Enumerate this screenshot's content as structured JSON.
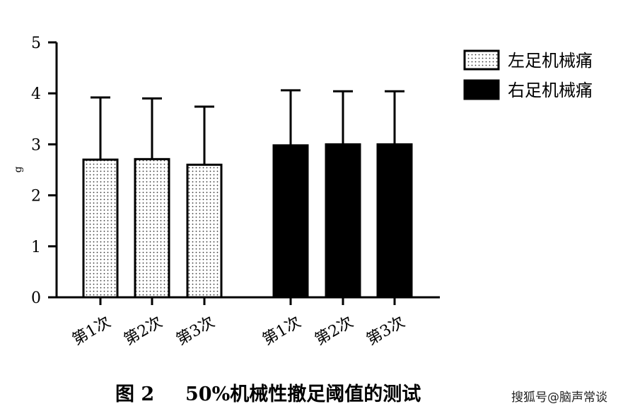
{
  "chart_data": {
    "type": "bar",
    "title": "",
    "xlabel": "",
    "ylabel": "g",
    "ylim": [
      0,
      5
    ],
    "yticks": [
      0,
      1,
      2,
      3,
      4,
      5
    ],
    "grid": false,
    "legend_position": "top-right",
    "groups": [
      {
        "series_name": "左足机械痛",
        "categories": [
          "第1次",
          "第2次",
          "第3次"
        ],
        "values": [
          2.7,
          2.71,
          2.6
        ],
        "error_upper": [
          3.92,
          3.9,
          3.74
        ],
        "fill": "dotted",
        "color": "#ffffff"
      },
      {
        "series_name": "右足机械痛",
        "categories": [
          "第1次",
          "第2次",
          "第3次"
        ],
        "values": [
          2.98,
          3.0,
          3.0
        ],
        "error_upper": [
          4.06,
          4.04,
          4.04
        ],
        "fill": "solid",
        "color": "#000000"
      }
    ]
  },
  "legend": {
    "items": [
      {
        "label": "左足机械痛",
        "style": "dotted"
      },
      {
        "label": "右足机械痛",
        "style": "solid"
      }
    ]
  },
  "caption": {
    "number": "图 2",
    "text": "50%机械性撤足阈值的测试"
  },
  "watermark": {
    "text": "搜狐号@脑声常谈"
  }
}
